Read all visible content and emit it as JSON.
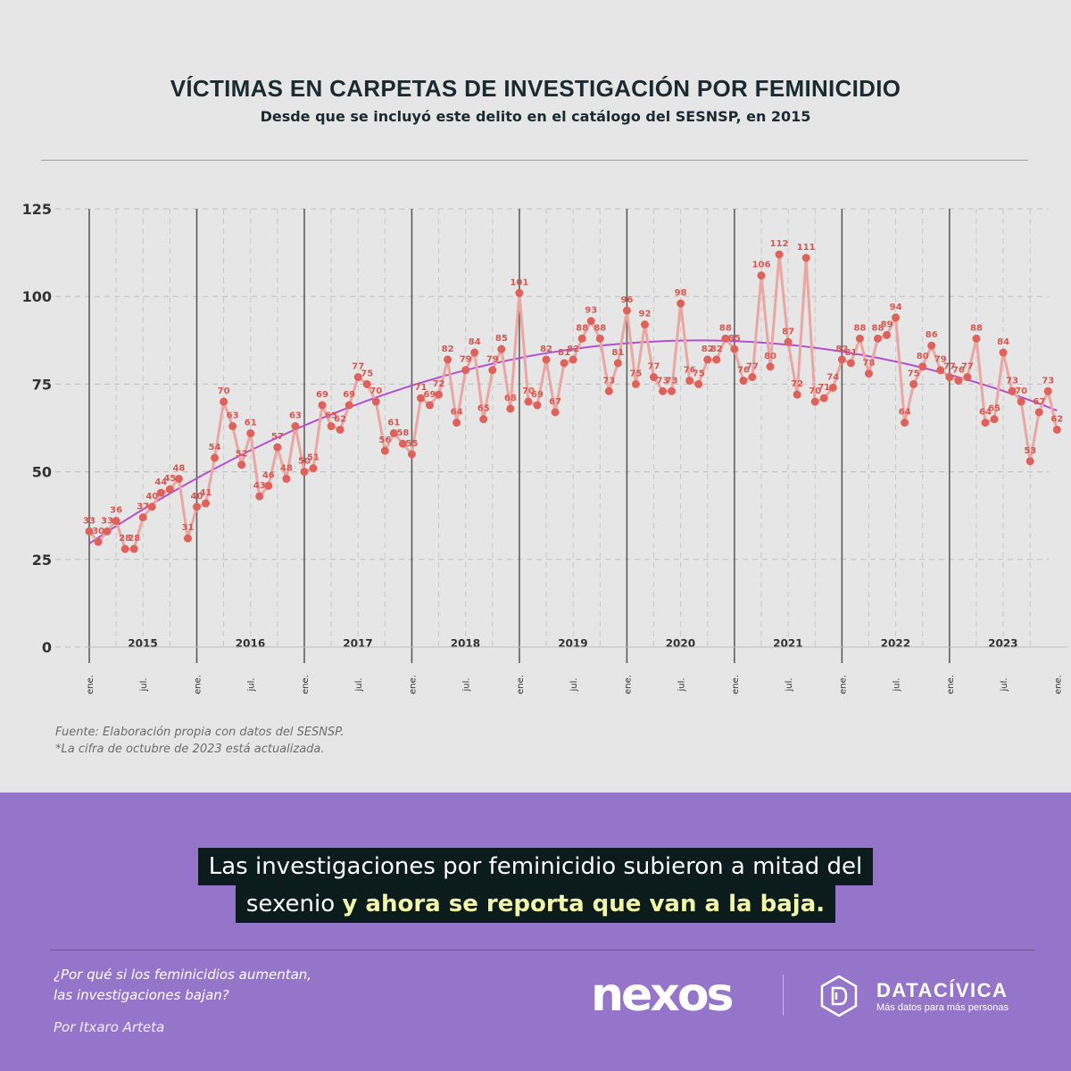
{
  "header": {
    "title": "VÍCTIMAS EN CARPETAS DE INVESTIGACIÓN POR FEMINICIDIO",
    "subtitle": "Desde que se incluyó este delito en el catálogo del SESNSP, en 2015"
  },
  "chart_data": {
    "type": "line",
    "title": "VÍCTIMAS EN CARPETAS DE INVESTIGACIÓN POR FEMINICIDIO",
    "xlabel": "",
    "ylabel": "",
    "ylim": [
      0,
      125
    ],
    "yticks": [
      0,
      25,
      50,
      75,
      100,
      125
    ],
    "grid": true,
    "start_month": "2015-01",
    "years": [
      "2015",
      "2016",
      "2017",
      "2018",
      "2019",
      "2020",
      "2021",
      "2022",
      "2023"
    ],
    "month_ticks": [
      "ene.",
      "jul."
    ],
    "series": [
      {
        "name": "",
        "color": "#e0605a",
        "values": [
          33,
          30,
          33,
          36,
          28,
          28,
          37,
          40,
          44,
          45,
          48,
          31,
          40,
          41,
          54,
          70,
          63,
          52,
          61,
          43,
          46,
          57,
          48,
          63,
          50,
          51,
          69,
          63,
          62,
          69,
          77,
          75,
          70,
          56,
          61,
          58,
          55,
          71,
          69,
          72,
          82,
          64,
          79,
          84,
          65,
          79,
          85,
          68,
          101,
          70,
          69,
          82,
          67,
          81,
          82,
          88,
          93,
          88,
          73,
          81,
          96,
          75,
          92,
          77,
          73,
          73,
          98,
          76,
          75,
          82,
          82,
          88,
          85,
          76,
          77,
          106,
          80,
          112,
          87,
          72,
          111,
          70,
          71,
          74,
          82,
          81,
          88,
          78,
          88,
          89,
          94,
          64,
          75,
          80,
          86,
          79,
          77,
          76,
          77,
          88,
          64,
          65,
          84,
          73,
          70,
          53,
          67,
          73,
          62
        ]
      },
      {
        "name": "",
        "color": "#b44fd0",
        "trend": "quadratic",
        "values": [
          29.5,
          85.0,
          67.5
        ]
      }
    ]
  },
  "source": {
    "line1": "Fuente: Elaboración propia con datos del SESNSP.",
    "line2": "*La cifra de octubre de 2023 está actualizada."
  },
  "headline": {
    "line1": "Las investigaciones por feminicidio subieron a mitad del",
    "line2_plain": "sexenio",
    "line2_highlight": "y ahora se reporta que van a la baja."
  },
  "footer": {
    "question_line1": "¿Por qué si los feminicidios aumentan,",
    "question_line2": "las investigaciones bajan?",
    "author": "Por  Itxaro Arteta",
    "nexos_logo": "nexos",
    "datacivica_name": "DATACÍVICA",
    "datacivica_tagline": "Más datos para más personas"
  },
  "colors": {
    "background": "#e6e6e6",
    "accent_purple": "#9575c9",
    "series_red": "#e0605a",
    "trend_purple": "#b44fd0",
    "title_dark": "#1b2a30",
    "headline_box": "#0c1c1c",
    "headline_highlight": "#f3f7a8"
  }
}
